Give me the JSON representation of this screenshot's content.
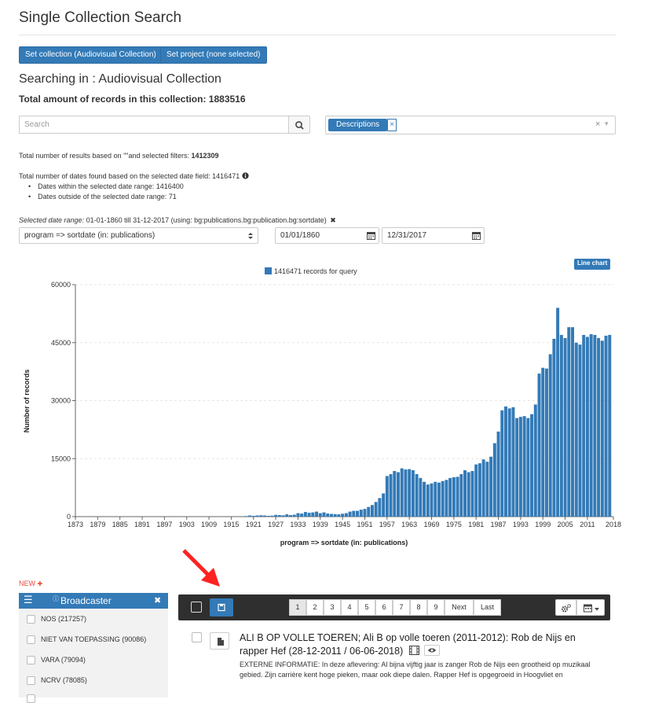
{
  "page": {
    "title": "Single Collection Search",
    "set_collection_label": "Set collection (Audiovisual Collection)",
    "set_project_label": "Set project (none selected)",
    "searching_in": "Searching in : Audiovisual Collection",
    "total_records": "Total amount of records in this collection: 1883516"
  },
  "search": {
    "placeholder": "Search",
    "value": ""
  },
  "filter": {
    "tag_label": "Descriptions",
    "tag_remove": "×",
    "clear": "×",
    "caret": "▾"
  },
  "stats": {
    "results_prefix": "Total number of results based on  \"\"and selected filters: ",
    "results_count": "1412309",
    "dates_found": "Total number of dates found based on the selected date field: 1416471",
    "within_range": "Dates within the selected date range: 1416400",
    "outside_range": "Dates outside of the selected date range: 71",
    "range_label": "Selected date range:",
    "range_value": " 01-01-1860 till 31-12-2017 (using: bg:publications.bg:publication.bg:sortdate)",
    "range_remove": "✖"
  },
  "date_filter": {
    "field_value": "program => sortdate (in: publications)",
    "start_date": "01/01/1860",
    "end_date": "12/31/2017"
  },
  "line_chart_label": "Line chart",
  "chart_data": {
    "type": "bar",
    "legend": "1416471 records for query",
    "ylabel": "Number of records",
    "xlabel": "program => sortdate (in: publications)",
    "ylim": [
      0,
      60000
    ],
    "yticks": [
      0,
      15000,
      30000,
      45000,
      60000
    ],
    "xrange": [
      1873,
      2018
    ],
    "xticks": [
      "1873",
      "1879",
      "1885",
      "1891",
      "1897",
      "1903",
      "1909",
      "1915",
      "1921",
      "1927",
      "1933",
      "1939",
      "1945",
      "1951",
      "1957",
      "1963",
      "1969",
      "1975",
      "1981",
      "1987",
      "1993",
      "1999",
      "2005",
      "2011",
      "2018"
    ],
    "color": "#337ab7",
    "x": [
      1919,
      1920,
      1921,
      1922,
      1923,
      1924,
      1925,
      1926,
      1927,
      1928,
      1929,
      1930,
      1931,
      1932,
      1933,
      1934,
      1935,
      1936,
      1937,
      1938,
      1939,
      1940,
      1941,
      1942,
      1943,
      1944,
      1945,
      1946,
      1947,
      1948,
      1949,
      1950,
      1951,
      1952,
      1953,
      1954,
      1955,
      1956,
      1957,
      1958,
      1959,
      1960,
      1961,
      1962,
      1963,
      1964,
      1965,
      1966,
      1967,
      1968,
      1969,
      1970,
      1971,
      1972,
      1973,
      1974,
      1975,
      1976,
      1977,
      1978,
      1979,
      1980,
      1981,
      1982,
      1983,
      1984,
      1985,
      1986,
      1987,
      1988,
      1989,
      1990,
      1991,
      1992,
      1993,
      1994,
      1995,
      1996,
      1997,
      1998,
      1999,
      2000,
      2001,
      2002,
      2003,
      2004,
      2005,
      2006,
      2007,
      2008,
      2009,
      2010,
      2011,
      2012,
      2013,
      2014,
      2015,
      2016,
      2017
    ],
    "values": [
      150,
      300,
      200,
      300,
      350,
      300,
      200,
      250,
      450,
      400,
      350,
      600,
      400,
      500,
      900,
      800,
      1200,
      1000,
      1100,
      1300,
      900,
      1100,
      800,
      700,
      650,
      600,
      750,
      900,
      1300,
      1500,
      1500,
      1800,
      2000,
      2500,
      3000,
      3800,
      4800,
      6000,
      10500,
      11000,
      11800,
      11500,
      12500,
      12200,
      12300,
      12000,
      11000,
      10000,
      9000,
      8300,
      8600,
      9000,
      8800,
      9200,
      9500,
      10000,
      10200,
      10300,
      11000,
      12000,
      11500,
      11800,
      13500,
      13800,
      14800,
      14200,
      15500,
      19000,
      22000,
      27500,
      28500,
      28000,
      28300,
      25500,
      25800,
      26000,
      25500,
      26500,
      29000,
      37000,
      38500,
      38300,
      42000,
      46000,
      54000,
      47000,
      46200,
      49000,
      49000,
      45000,
      44500,
      47000,
      46500,
      47200,
      47000,
      46200,
      45500,
      46800,
      47000
    ]
  },
  "facets": {
    "new_label": "NEW",
    "new_plus": "✚",
    "title": "Broadcaster",
    "menu_icon": "☰",
    "info_icon": "ⓘ",
    "close_icon": "✖",
    "items": [
      {
        "label": "NOS (217257)"
      },
      {
        "label": "NIET VAN TOEPASSING (90086)"
      },
      {
        "label": "VARA (79094)"
      },
      {
        "label": "NCRV (78085)"
      }
    ]
  },
  "pagination": {
    "pages": [
      "1",
      "2",
      "3",
      "4",
      "5",
      "6",
      "7",
      "8",
      "9"
    ],
    "next": "Next",
    "last": "Last"
  },
  "result": {
    "title": "ALI B OP VOLLE TOEREN; Ali B op volle toeren (2011-2012): Rob de Nijs en rapper Hef (28-12-2011 / 06-06-2018)",
    "description": "EXTERNE INFORMATIE: In deze aflevering: Al bijna vijftig jaar is zanger Rob de Nijs een grootheid op muzikaal gebied. Zijn carrière kent hoge pieken, maar ook diepe dalen. Rapper Hef is opgegroeid in Hoogvliet en"
  }
}
